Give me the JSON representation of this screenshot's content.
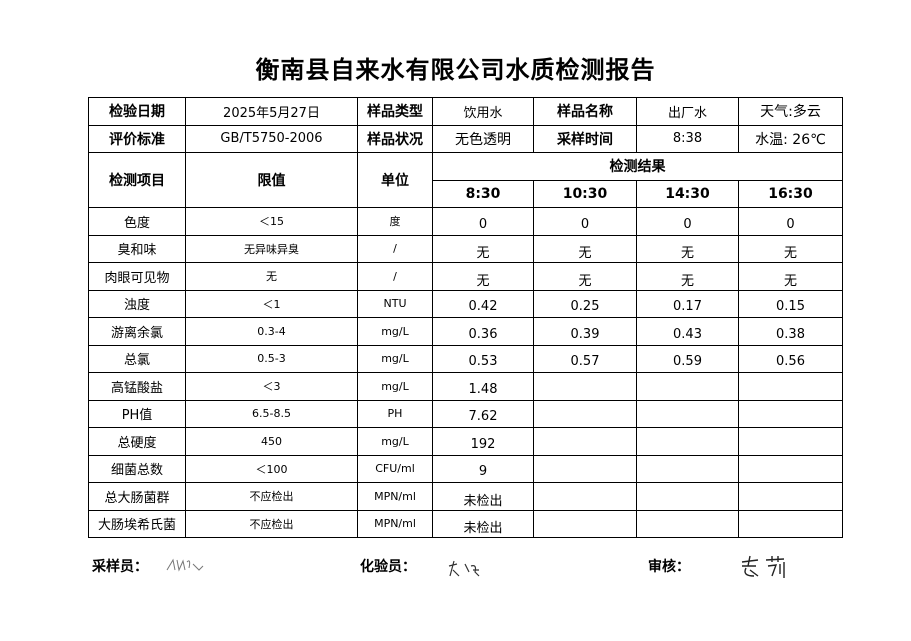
{
  "title": "衡南县自来水有限公司水质检测报告",
  "info": {
    "date_label": "检验日期",
    "date": "2025年5月27日",
    "type_label": "样品类型",
    "type": "饮用水",
    "name_label": "样品名称",
    "name": "出厂水",
    "weather": "天气:多云",
    "standard_label": "评价标准",
    "standard": "GB/T5750-2006",
    "state_label": "样品状况",
    "state": "无色透明",
    "time_label": "采样时间",
    "time": "8:38",
    "water_temp": "水温: 26℃"
  },
  "headers": {
    "item": "检测项目",
    "limit": "限值",
    "unit": "单位",
    "results": "检测结果",
    "times": [
      "8:30",
      "10:30",
      "14:30",
      "16:30"
    ]
  },
  "rows": [
    {
      "item": "色度",
      "limit": "＜15",
      "unit": "度",
      "values": [
        "0",
        "0",
        "0",
        "0"
      ]
    },
    {
      "item": "臭和味",
      "limit": "无异味异臭",
      "unit": "/",
      "values": [
        "无",
        "无",
        "无",
        "无"
      ]
    },
    {
      "item": "肉眼可见物",
      "limit": "无",
      "unit": "/",
      "values": [
        "无",
        "无",
        "无",
        "无"
      ]
    },
    {
      "item": "浊度",
      "limit": "＜1",
      "unit": "NTU",
      "values": [
        "0.42",
        "0.25",
        "0.17",
        "0.15"
      ]
    },
    {
      "item": "游离余氯",
      "limit": "0.3-4",
      "unit": "mg/L",
      "values": [
        "0.36",
        "0.39",
        "0.43",
        "0.38"
      ]
    },
    {
      "item": "总氯",
      "limit": "0.5-3",
      "unit": "mg/L",
      "values": [
        "0.53",
        "0.57",
        "0.59",
        "0.56"
      ]
    },
    {
      "item": "高锰酸盐",
      "limit": "＜3",
      "unit": "mg/L",
      "values": [
        "1.48",
        "",
        "",
        ""
      ]
    },
    {
      "item": "PH值",
      "limit": "6.5-8.5",
      "unit": "PH",
      "values": [
        "7.62",
        "",
        "",
        ""
      ]
    },
    {
      "item": "总硬度",
      "limit": "450",
      "unit": "mg/L",
      "values": [
        "192",
        "",
        "",
        ""
      ]
    },
    {
      "item": "细菌总数",
      "limit": "＜100",
      "unit": "CFU/ml",
      "values": [
        "9",
        "",
        "",
        ""
      ]
    },
    {
      "item": "总大肠菌群",
      "limit": "不应检出",
      "unit": "MPN/ml",
      "values": [
        "未检出",
        "",
        "",
        ""
      ]
    },
    {
      "item": "大肠埃希氏菌",
      "limit": "不应检出",
      "unit": "MPN/ml",
      "values": [
        "未检出",
        "",
        "",
        ""
      ]
    }
  ],
  "footer": {
    "sampler": "采样员：",
    "tester": "化验员：",
    "reviewer": "审核："
  }
}
